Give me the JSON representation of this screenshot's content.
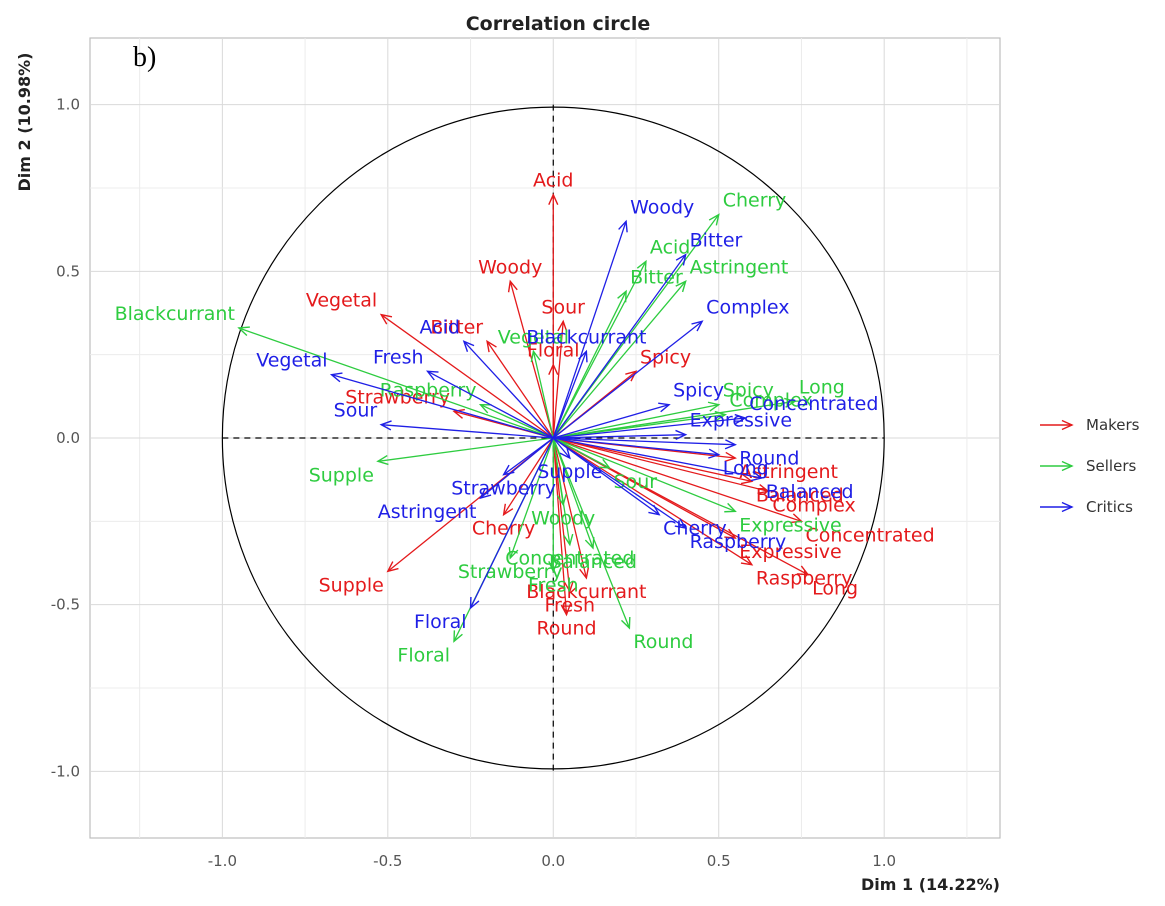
{
  "chart_data": {
    "type": "scatter",
    "title": "Correlation circle",
    "panel_tag": "b)",
    "xlabel": "Dim 1 (14.22%)",
    "ylabel": "Dim 2 (10.98%)",
    "xlim": [
      -1.4,
      1.35
    ],
    "ylim": [
      -1.2,
      1.2
    ],
    "x_ticks": [
      -1.0,
      -0.5,
      0.0,
      0.5,
      1.0
    ],
    "x_tick_labels": [
      "-1.0",
      "-0.5",
      "0.0",
      "0.5",
      "1.0"
    ],
    "y_ticks": [
      -1.0,
      -0.5,
      0.0,
      0.5,
      1.0
    ],
    "y_tick_labels": [
      "-1.0",
      "-0.5",
      "0.0",
      "0.5",
      "1.0"
    ],
    "grid": true,
    "unit_circle": true,
    "legend_position": "right",
    "series": [
      {
        "name": "Makers",
        "color": "#e41a1c",
        "points": [
          {
            "label": "Acid",
            "x": 0.0,
            "y": 0.73
          },
          {
            "label": "Woody",
            "x": -0.13,
            "y": 0.47
          },
          {
            "label": "Vegetal",
            "x": -0.52,
            "y": 0.37
          },
          {
            "label": "Bitter",
            "x": -0.2,
            "y": 0.29
          },
          {
            "label": "Sour",
            "x": 0.03,
            "y": 0.35
          },
          {
            "label": "Floral",
            "x": 0.0,
            "y": 0.22
          },
          {
            "label": "Spicy",
            "x": 0.25,
            "y": 0.2
          },
          {
            "label": "Strawberry",
            "x": -0.3,
            "y": 0.08
          },
          {
            "label": "Astringent",
            "x": 0.55,
            "y": -0.06
          },
          {
            "label": "Balanced",
            "x": 0.6,
            "y": -0.13
          },
          {
            "label": "Complex",
            "x": 0.65,
            "y": -0.16
          },
          {
            "label": "Concentrated",
            "x": 0.75,
            "y": -0.25
          },
          {
            "label": "Expressive",
            "x": 0.55,
            "y": -0.3
          },
          {
            "label": "Raspberry",
            "x": 0.6,
            "y": -0.38
          },
          {
            "label": "Long",
            "x": 0.77,
            "y": -0.41
          },
          {
            "label": "Cherry",
            "x": -0.15,
            "y": -0.23
          },
          {
            "label": "Supple",
            "x": -0.5,
            "y": -0.4
          },
          {
            "label": "Fresh",
            "x": 0.05,
            "y": -0.46
          },
          {
            "label": "Blackcurrant",
            "x": 0.1,
            "y": -0.42
          },
          {
            "label": "Round",
            "x": 0.04,
            "y": -0.53
          }
        ]
      },
      {
        "name": "Sellers",
        "color": "#2ecc40",
        "points": [
          {
            "label": "Cherry",
            "x": 0.5,
            "y": 0.67
          },
          {
            "label": "Acid",
            "x": 0.28,
            "y": 0.53
          },
          {
            "label": "Bitter",
            "x": 0.22,
            "y": 0.44
          },
          {
            "label": "Astringent",
            "x": 0.4,
            "y": 0.47
          },
          {
            "label": "Blackcurrant",
            "x": -0.95,
            "y": 0.33
          },
          {
            "label": "Vegetal",
            "x": -0.06,
            "y": 0.26
          },
          {
            "label": "Raspberry",
            "x": -0.22,
            "y": 0.1
          },
          {
            "label": "Spicy",
            "x": 0.5,
            "y": 0.1
          },
          {
            "label": "Long",
            "x": 0.73,
            "y": 0.11
          },
          {
            "label": "Complex",
            "x": 0.52,
            "y": 0.07
          },
          {
            "label": "Supple",
            "x": -0.53,
            "y": -0.07
          },
          {
            "label": "Floral",
            "x": -0.3,
            "y": -0.61
          },
          {
            "label": "Strawberry",
            "x": -0.13,
            "y": -0.36
          },
          {
            "label": "Fresh",
            "x": 0.0,
            "y": -0.4
          },
          {
            "label": "Round",
            "x": 0.23,
            "y": -0.57
          },
          {
            "label": "Woody",
            "x": 0.03,
            "y": -0.2
          },
          {
            "label": "Concentrated",
            "x": 0.05,
            "y": -0.32
          },
          {
            "label": "Balanced",
            "x": 0.12,
            "y": -0.33
          },
          {
            "label": "Expressive",
            "x": 0.55,
            "y": -0.22
          },
          {
            "label": "Sour",
            "x": 0.17,
            "y": -0.09
          }
        ]
      },
      {
        "name": "Critics",
        "color": "#1f1fe6",
        "points": [
          {
            "label": "Woody",
            "x": 0.22,
            "y": 0.65
          },
          {
            "label": "Bitter",
            "x": 0.4,
            "y": 0.55
          },
          {
            "label": "Complex",
            "x": 0.45,
            "y": 0.35
          },
          {
            "label": "Acid",
            "x": -0.27,
            "y": 0.29
          },
          {
            "label": "Blackcurrant",
            "x": 0.1,
            "y": 0.26
          },
          {
            "label": "Fresh",
            "x": -0.38,
            "y": 0.2
          },
          {
            "label": "Vegetal",
            "x": -0.67,
            "y": 0.19
          },
          {
            "label": "Spicy",
            "x": 0.35,
            "y": 0.1
          },
          {
            "label": "Concentrated",
            "x": 0.58,
            "y": 0.06
          },
          {
            "label": "Sour",
            "x": -0.52,
            "y": 0.04
          },
          {
            "label": "Expressive",
            "x": 0.4,
            "y": 0.01
          },
          {
            "label": "Round",
            "x": 0.55,
            "y": -0.02
          },
          {
            "label": "Long",
            "x": 0.5,
            "y": -0.05
          },
          {
            "label": "Supple",
            "x": 0.05,
            "y": -0.06
          },
          {
            "label": "Balanced",
            "x": 0.63,
            "y": -0.12
          },
          {
            "label": "Strawberry",
            "x": -0.15,
            "y": -0.11
          },
          {
            "label": "Astringent",
            "x": -0.22,
            "y": -0.18
          },
          {
            "label": "Cherry",
            "x": 0.32,
            "y": -0.23
          },
          {
            "label": "Raspberry",
            "x": 0.4,
            "y": -0.27
          },
          {
            "label": "Floral",
            "x": -0.25,
            "y": -0.51
          }
        ]
      }
    ]
  }
}
